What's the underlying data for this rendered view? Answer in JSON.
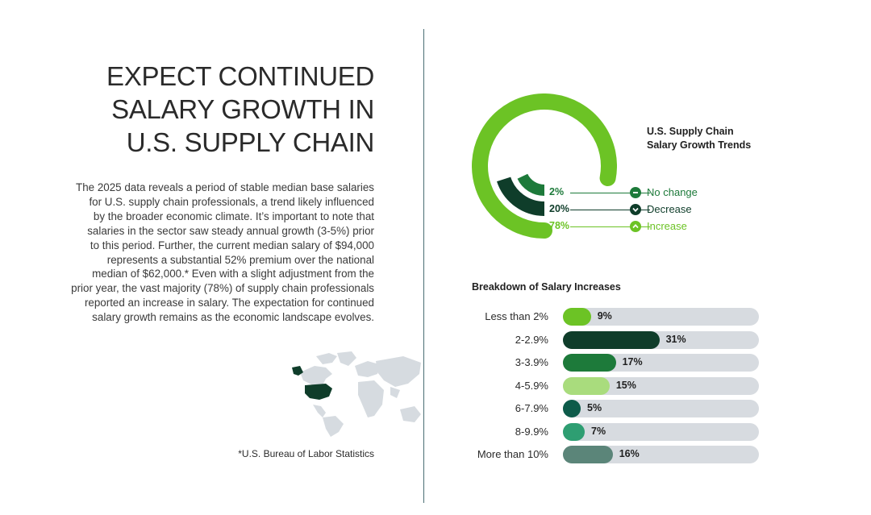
{
  "headline": [
    "EXPECT CONTINUED",
    "SALARY GROWTH IN",
    "U.S. SUPPLY CHAIN"
  ],
  "body_lines": [
    "The 2025 data reveals a period of stable median base salaries",
    "for U.S. supply chain professionals, a trend likely influenced",
    "by the broader economic climate. It’s important to note that",
    "salaries in the sector saw steady annual growth (3-5%) prior",
    "to this period. Further, the current median salary of  $94,000",
    "represents a substantial 52% premium over the national",
    "median of $62,000.* Even with a slight adjustment from the",
    "prior year, the vast majority (78%) of supply chain professionals",
    "reported an increase in salary. The expectation for continued",
    "salary growth remains as the economic landscape evolves."
  ],
  "footnote": "*U.S. Bureau of Labor Statistics",
  "colors": {
    "lime": "#6cc325",
    "dark": "#0f3d2a",
    "green": "#1d7a3a",
    "light": "#a9dc7d",
    "teal": "#0d5b4a",
    "mint": "#2e9e72",
    "slate": "#5b8579",
    "track": "#d7dbe0",
    "map_land": "#d6dbe0",
    "map_us": "#0f3d2a"
  },
  "chart_data": [
    {
      "type": "pie",
      "title": "U.S. Supply Chain Salary Growth Trends",
      "title_lines": [
        "U.S. Supply Chain",
        "Salary Growth Trends"
      ],
      "series": [
        {
          "name": "No change",
          "value": 2,
          "label": "2%",
          "color": "#1d7a3a",
          "icon": "minus-circle-icon"
        },
        {
          "name": "Decrease",
          "value": 20,
          "label": "20%",
          "color": "#0f3d2a",
          "icon": "chevron-down-circle-icon"
        },
        {
          "name": "Increase",
          "value": 78,
          "label": "78%",
          "color": "#6cc325",
          "icon": "chevron-up-circle-icon"
        }
      ]
    },
    {
      "type": "bar",
      "title": "Breakdown of Salary Increases",
      "categories": [
        "Less than 2%",
        "2-2.9%",
        "3-3.9%",
        "4-5.9%",
        "6-7.9%",
        "8-9.9%",
        "More than 10%"
      ],
      "values": [
        9,
        31,
        17,
        15,
        5,
        7,
        16
      ],
      "value_labels": [
        "9%",
        "31%",
        "17%",
        "15%",
        "5%",
        "7%",
        "16%"
      ],
      "colors": [
        "#6cc325",
        "#0f3d2a",
        "#1d7a3a",
        "#a9dc7d",
        "#0d5b4a",
        "#2e9e72",
        "#5b8579"
      ],
      "xlim": [
        0,
        63
      ]
    }
  ]
}
